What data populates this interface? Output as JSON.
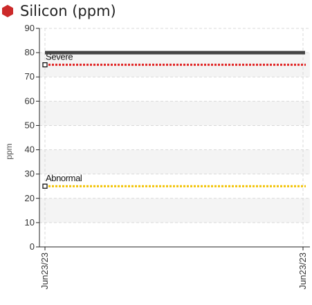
{
  "colors": {
    "title_icon": "#cc2a2a",
    "series_line": "#444444",
    "severe": "#e01f1f",
    "abnormal": "#f2c200",
    "band_light": "#f4f4f4",
    "grid": "#d9d9d9"
  },
  "chart_data": {
    "type": "line",
    "title": "Silicon (ppm)",
    "ylabel": "ppm",
    "ylim": [
      0,
      90
    ],
    "yticks": [
      0,
      10,
      20,
      30,
      40,
      50,
      60,
      70,
      80,
      90
    ],
    "x": [
      "Jun23/23",
      "Jun23/23"
    ],
    "series": [
      {
        "values": [
          80,
          80
        ]
      }
    ],
    "thresholds": [
      {
        "label": "Severe",
        "value": 75,
        "style": "dotted",
        "color": "#e01f1f"
      },
      {
        "label": "Abnormal",
        "value": 25,
        "style": "dotted",
        "color": "#f2c200"
      }
    ],
    "grid": true
  }
}
